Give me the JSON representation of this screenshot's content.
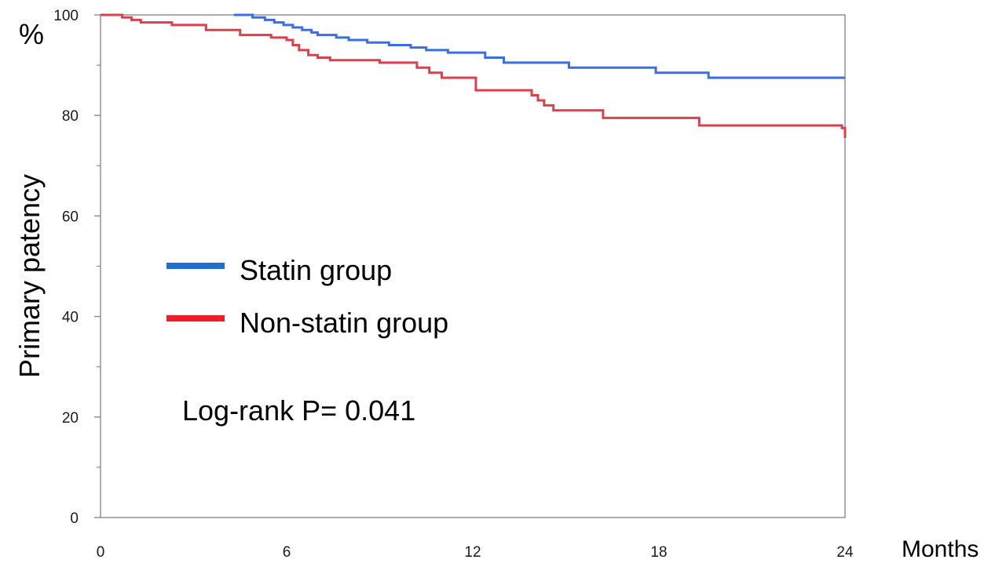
{
  "chart_data": {
    "type": "line",
    "step": true,
    "ylabel": "Primary patency",
    "yunit": "%",
    "xunit": "Months",
    "xlim": [
      0,
      24
    ],
    "ylim": [
      0,
      100
    ],
    "xticks": [
      0,
      6,
      12,
      18,
      24
    ],
    "yticks": [
      0,
      20,
      40,
      60,
      80,
      100
    ],
    "grid": false,
    "legend_position": "center-left",
    "annotation": "Log-rank P= 0.041",
    "series": [
      {
        "name": "Statin group",
        "color": "#3b6fe0",
        "legend_color": "#1f6fd1",
        "x": [
          4.3,
          4.9,
          5.3,
          5.6,
          5.9,
          6.2,
          6.5,
          6.8,
          7.0,
          7.6,
          8.0,
          8.6,
          9.3,
          10.0,
          10.5,
          11.2,
          12.4,
          13.0,
          15.1,
          17.9,
          19.6,
          24.0
        ],
        "y": [
          100,
          99.5,
          99.0,
          98.5,
          98.0,
          97.5,
          97.0,
          96.5,
          96.0,
          95.5,
          95.0,
          94.5,
          94.0,
          93.5,
          93.0,
          92.5,
          91.5,
          90.5,
          89.5,
          88.5,
          87.5,
          87.5
        ]
      },
      {
        "name": "Non-statin group",
        "color": "#d9414f",
        "legend_color": "#ee1c25",
        "x": [
          0,
          0.7,
          1.0,
          1.3,
          2.3,
          3.4,
          4.5,
          5.5,
          6.0,
          6.2,
          6.4,
          6.7,
          7.0,
          7.4,
          9.0,
          10.2,
          10.6,
          11.0,
          12.1,
          13.9,
          14.1,
          14.3,
          14.6,
          16.2,
          19.3,
          23.9,
          24.0
        ],
        "y": [
          100,
          99.5,
          99.0,
          98.5,
          98.0,
          97.0,
          96.0,
          95.5,
          95.0,
          94.0,
          93.0,
          92.0,
          91.5,
          91.0,
          90.5,
          89.5,
          88.5,
          87.5,
          85.0,
          84.0,
          83.0,
          82.0,
          81.0,
          79.5,
          78.0,
          77.5,
          75.5
        ]
      }
    ]
  }
}
